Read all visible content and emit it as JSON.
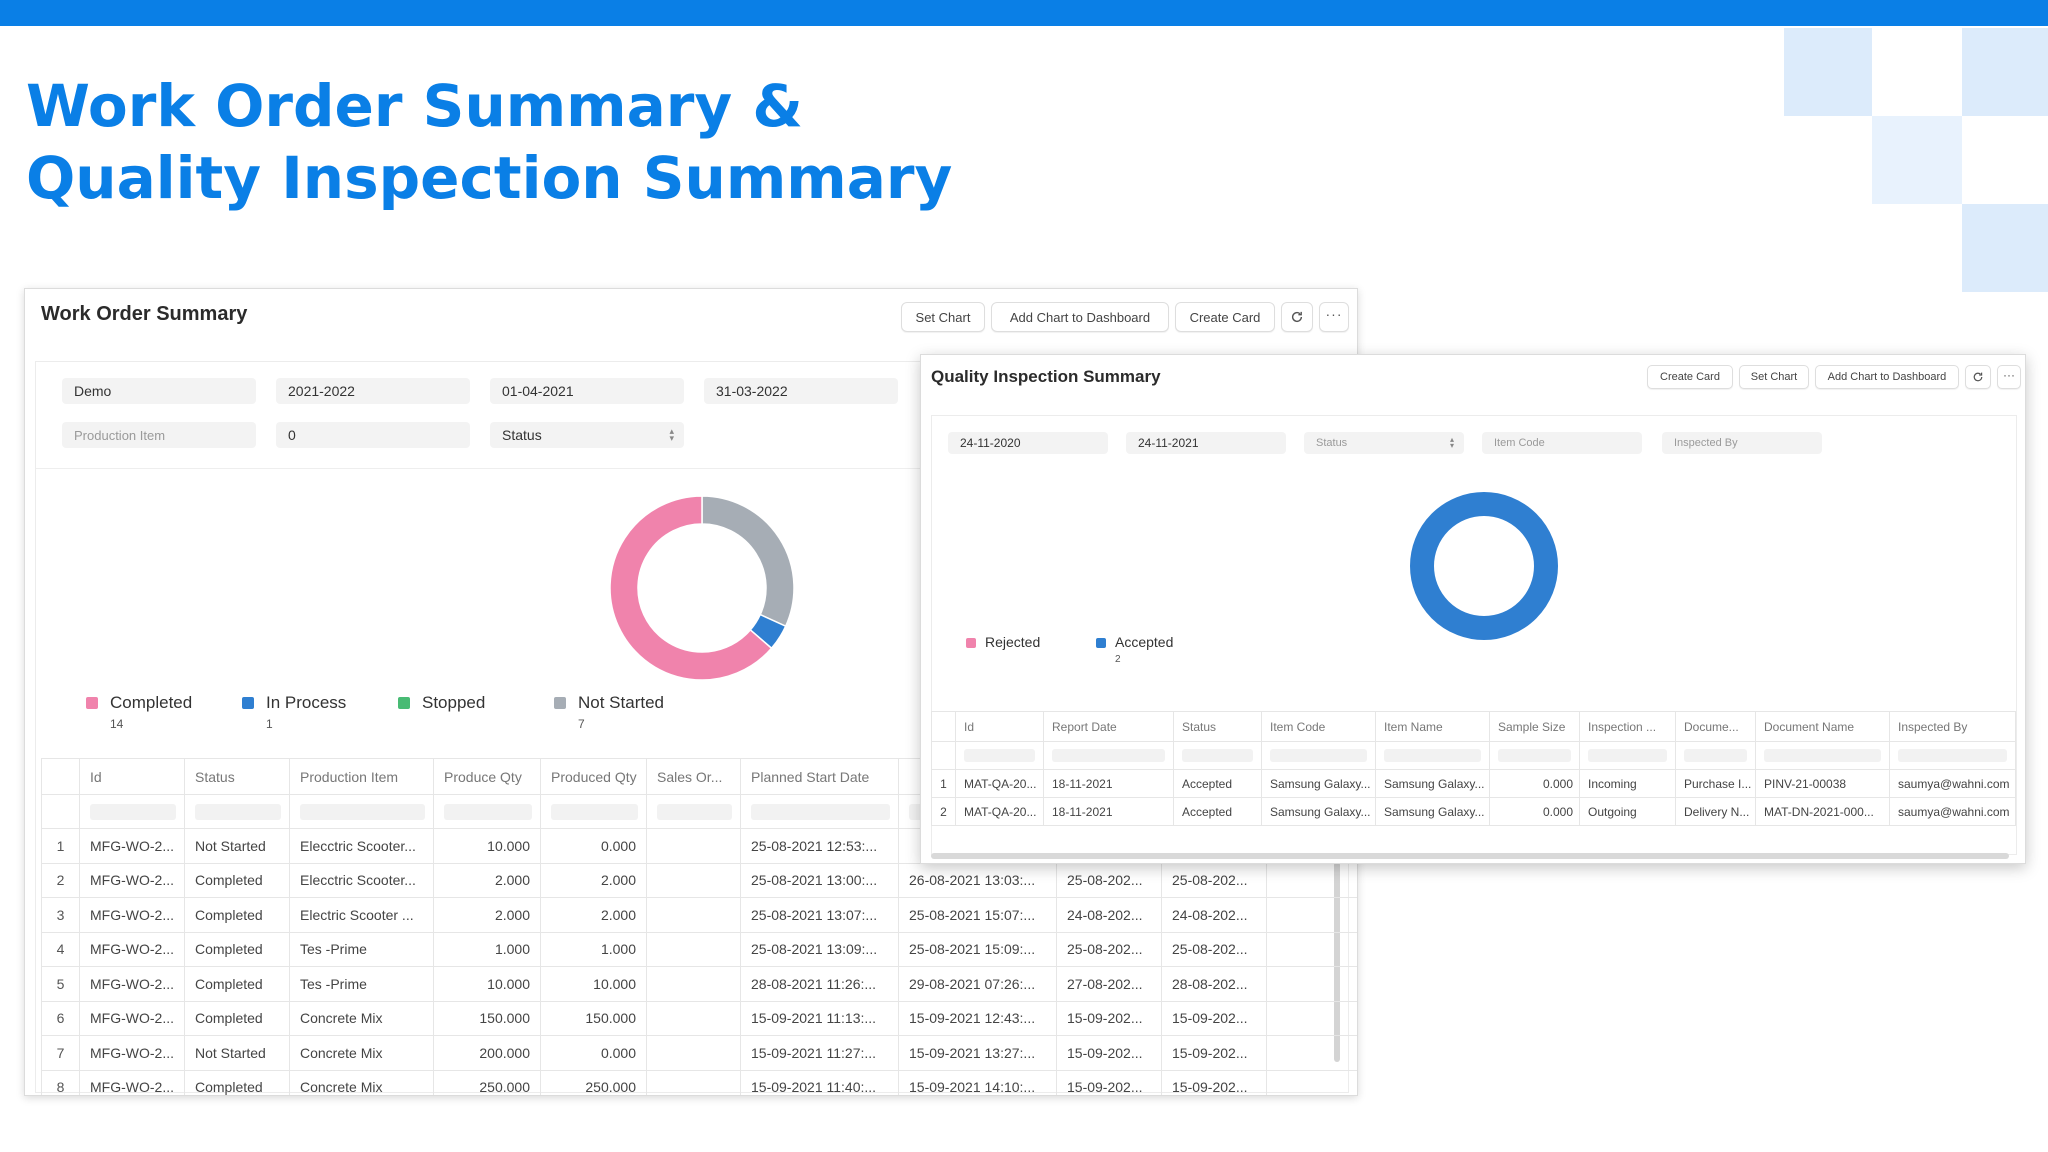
{
  "slide": {
    "title_line1": "Work Order Summary &",
    "title_line2": "Quality Inspection Summary",
    "colors": {
      "accent": "#0a7fe6",
      "deco": "#dcebfb"
    }
  },
  "work_order": {
    "title": "Work Order Summary",
    "buttons": {
      "set_chart": "Set Chart",
      "add_chart": "Add Chart to Dashboard",
      "create_card": "Create Card",
      "refresh": "refresh-icon",
      "more": "more-icon"
    },
    "filters": {
      "company": "Demo",
      "fiscal_year": "2021-2022",
      "from_date": "01-04-2021",
      "to_date": "31-03-2022",
      "production_item_placeholder": "Production Item",
      "qty": "0",
      "status_placeholder": "Status"
    },
    "legend": [
      {
        "label": "Completed",
        "count": "14",
        "color": "#f083ac"
      },
      {
        "label": "In Process",
        "count": "1",
        "color": "#2f7fd1"
      },
      {
        "label": "Stopped",
        "count": "",
        "color": "#48bb74"
      },
      {
        "label": "Not Started",
        "count": "7",
        "color": "#a6adb5"
      }
    ],
    "chart_data": {
      "type": "pie",
      "labels": [
        "Completed",
        "In Process",
        "Stopped",
        "Not Started"
      ],
      "values": [
        14,
        1,
        0,
        7
      ],
      "colors": [
        "#f083ac",
        "#2f7fd1",
        "#48bb74",
        "#a6adb5"
      ],
      "legend": "bottom-left",
      "donut": true
    },
    "columns": [
      "Id",
      "Status",
      "Production Item",
      "Produce Qty",
      "Produced Qty",
      "Sales Or...",
      "Planned Start Date",
      "",
      "",
      "",
      ""
    ],
    "rows": [
      {
        "n": "1",
        "id": "MFG-WO-2...",
        "status": "Not Started",
        "item": "Elecctric Scooter...",
        "qty": "10.000",
        "produced": "0.000",
        "so": "",
        "start": "25-08-2021 12:53:...",
        "c8": "",
        "c9": "",
        "c10": ""
      },
      {
        "n": "2",
        "id": "MFG-WO-2...",
        "status": "Completed",
        "item": "Elecctric Scooter...",
        "qty": "2.000",
        "produced": "2.000",
        "so": "",
        "start": "25-08-2021 13:00:...",
        "c8": "26-08-2021 13:03:...",
        "c9": "25-08-202...",
        "c10": "25-08-202..."
      },
      {
        "n": "3",
        "id": "MFG-WO-2...",
        "status": "Completed",
        "item": "Electric Scooter ...",
        "qty": "2.000",
        "produced": "2.000",
        "so": "",
        "start": "25-08-2021 13:07:...",
        "c8": "25-08-2021 15:07:...",
        "c9": "24-08-202...",
        "c10": "24-08-202..."
      },
      {
        "n": "4",
        "id": "MFG-WO-2...",
        "status": "Completed",
        "item": "Tes -Prime",
        "qty": "1.000",
        "produced": "1.000",
        "so": "",
        "start": "25-08-2021 13:09:...",
        "c8": "25-08-2021 15:09:...",
        "c9": "25-08-202...",
        "c10": "25-08-202..."
      },
      {
        "n": "5",
        "id": "MFG-WO-2...",
        "status": "Completed",
        "item": "Tes -Prime",
        "qty": "10.000",
        "produced": "10.000",
        "so": "",
        "start": "28-08-2021 11:26:...",
        "c8": "29-08-2021 07:26:...",
        "c9": "27-08-202...",
        "c10": "28-08-202..."
      },
      {
        "n": "6",
        "id": "MFG-WO-2...",
        "status": "Completed",
        "item": "Concrete Mix",
        "qty": "150.000",
        "produced": "150.000",
        "so": "",
        "start": "15-09-2021 11:13:...",
        "c8": "15-09-2021 12:43:...",
        "c9": "15-09-202...",
        "c10": "15-09-202..."
      },
      {
        "n": "7",
        "id": "MFG-WO-2...",
        "status": "Not Started",
        "item": "Concrete Mix",
        "qty": "200.000",
        "produced": "0.000",
        "so": "",
        "start": "15-09-2021 11:27:...",
        "c8": "15-09-2021 13:27:...",
        "c9": "15-09-202...",
        "c10": "15-09-202..."
      },
      {
        "n": "8",
        "id": "MFG-WO-2...",
        "status": "Completed",
        "item": "Concrete Mix",
        "qty": "250.000",
        "produced": "250.000",
        "so": "",
        "start": "15-09-2021 11:40:...",
        "c8": "15-09-2021 14:10:...",
        "c9": "15-09-202...",
        "c10": "15-09-202..."
      }
    ]
  },
  "quality": {
    "title": "Quality Inspection Summary",
    "buttons": {
      "create_card": "Create Card",
      "set_chart": "Set Chart",
      "add_chart": "Add Chart to Dashboard",
      "refresh": "refresh-icon",
      "more": "more-icon"
    },
    "filters": {
      "from_date": "24-11-2020",
      "to_date": "24-11-2021",
      "status_placeholder": "Status",
      "item_code_placeholder": "Item Code",
      "inspected_by_placeholder": "Inspected By"
    },
    "legend": [
      {
        "label": "Rejected",
        "count": "",
        "color": "#f083ac"
      },
      {
        "label": "Accepted",
        "count": "2",
        "color": "#2f7fd1"
      }
    ],
    "chart_data": {
      "type": "pie",
      "labels": [
        "Rejected",
        "Accepted"
      ],
      "values": [
        0,
        2
      ],
      "colors": [
        "#f083ac",
        "#2f7fd1"
      ],
      "legend": "bottom-left",
      "donut": true
    },
    "columns": [
      "Id",
      "Report Date",
      "Status",
      "Item Code",
      "Item Name",
      "Sample Size",
      "Inspection ...",
      "Docume...",
      "Document Name",
      "Inspected By"
    ],
    "rows": [
      {
        "n": "1",
        "id": "MAT-QA-20...",
        "date": "18-11-2021",
        "status": "Accepted",
        "code": "Samsung Galaxy...",
        "name": "Samsung Galaxy...",
        "size": "0.000",
        "type": "Incoming",
        "doctype": "Purchase I...",
        "docname": "PINV-21-00038",
        "by": "saumya@wahni.com"
      },
      {
        "n": "2",
        "id": "MAT-QA-20...",
        "date": "18-11-2021",
        "status": "Accepted",
        "code": "Samsung Galaxy...",
        "name": "Samsung Galaxy...",
        "size": "0.000",
        "type": "Outgoing",
        "doctype": "Delivery N...",
        "docname": "MAT-DN-2021-000...",
        "by": "saumya@wahni.com"
      }
    ]
  }
}
